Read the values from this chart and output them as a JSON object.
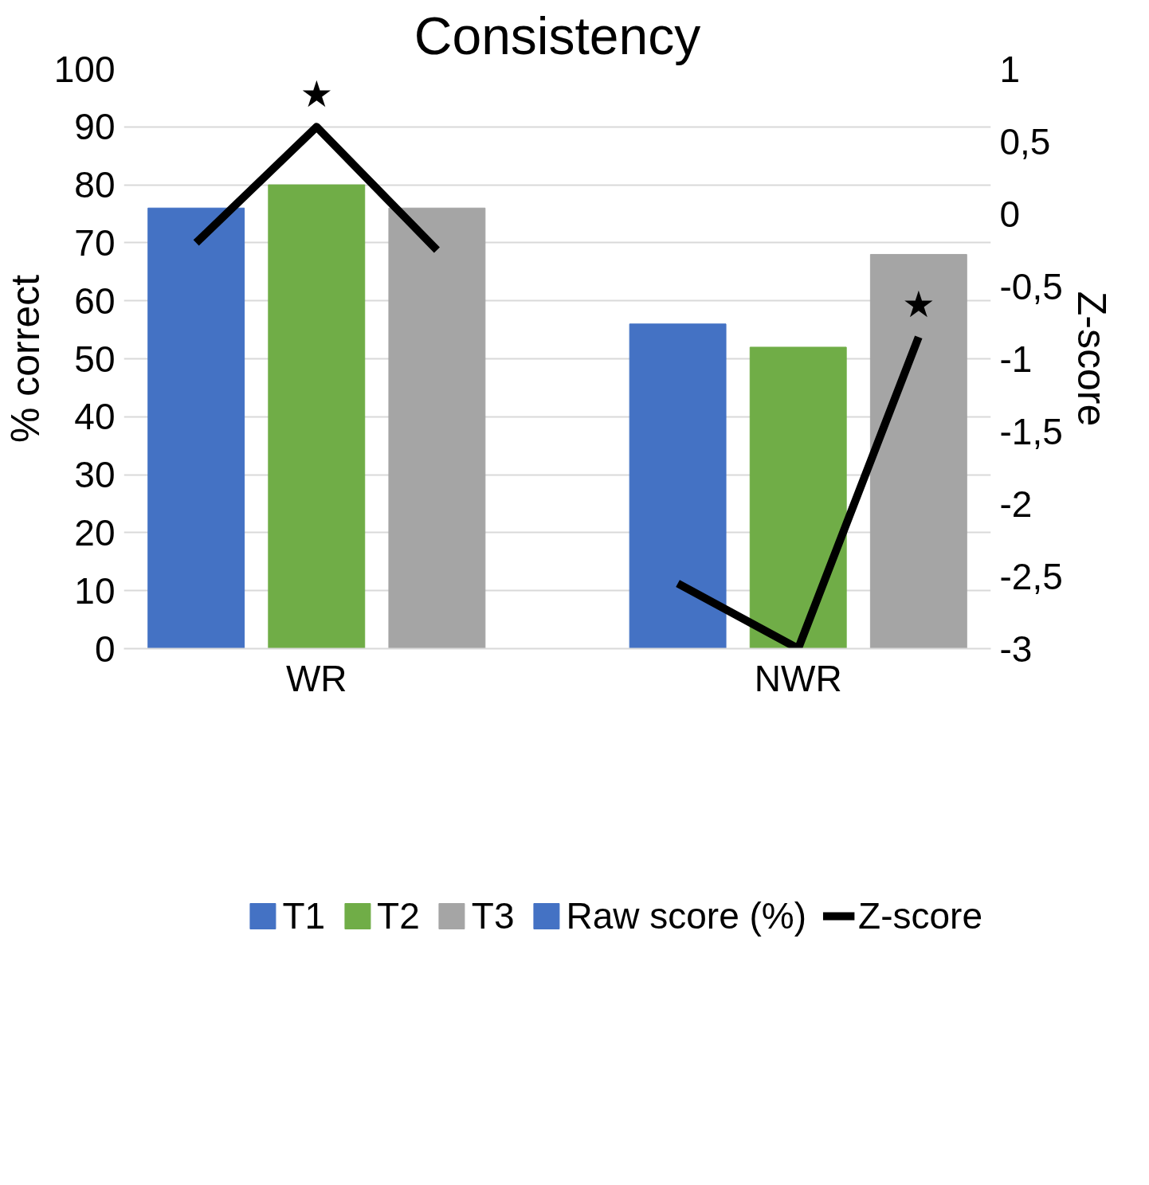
{
  "chart_data": {
    "type": "bar",
    "title": "Consistency",
    "ylabel": "% correct",
    "y2label": "Z-score",
    "categories": [
      null,
      "WR",
      null,
      null,
      null,
      "NWR",
      null
    ],
    "series": [
      {
        "name": "T1",
        "color": "#4472c4",
        "values": [
          76,
          null,
          null,
          null,
          56,
          null,
          null
        ]
      },
      {
        "name": "T2",
        "color": "#70ad47",
        "values": [
          null,
          80,
          null,
          null,
          null,
          52,
          null
        ]
      },
      {
        "name": "T3",
        "color": "#a5a5a5",
        "values": [
          null,
          null,
          76,
          null,
          null,
          null,
          68
        ]
      },
      {
        "name": "Raw score (%)",
        "color": "#4472c4",
        "values": [
          null,
          null,
          null,
          null,
          null,
          null,
          null
        ]
      },
      {
        "name": "Z-score",
        "type": "line",
        "axis": "y2",
        "color": "#000000",
        "values": [
          -0.2,
          0.6,
          -0.25,
          null,
          -2.55,
          -3,
          -0.85
        ]
      }
    ],
    "ylim": [
      0,
      100
    ],
    "yticks": [
      0,
      10,
      20,
      30,
      40,
      50,
      60,
      70,
      80,
      90,
      100
    ],
    "y2lim": [
      -3,
      1
    ],
    "y2ticks": [
      {
        "value": -3,
        "label": "-3"
      },
      {
        "value": -2.5,
        "label": "-2,5"
      },
      {
        "value": -2,
        "label": "-2"
      },
      {
        "value": -1.5,
        "label": "-1,5"
      },
      {
        "value": -1,
        "label": "-1"
      },
      {
        "value": -0.5,
        "label": "-0,5"
      },
      {
        "value": 0,
        "label": "0"
      },
      {
        "value": 0.5,
        "label": "0,5"
      },
      {
        "value": 1,
        "label": "1"
      }
    ],
    "annotations": [
      "★",
      "★"
    ],
    "grid": "y",
    "legend": "bottom"
  }
}
